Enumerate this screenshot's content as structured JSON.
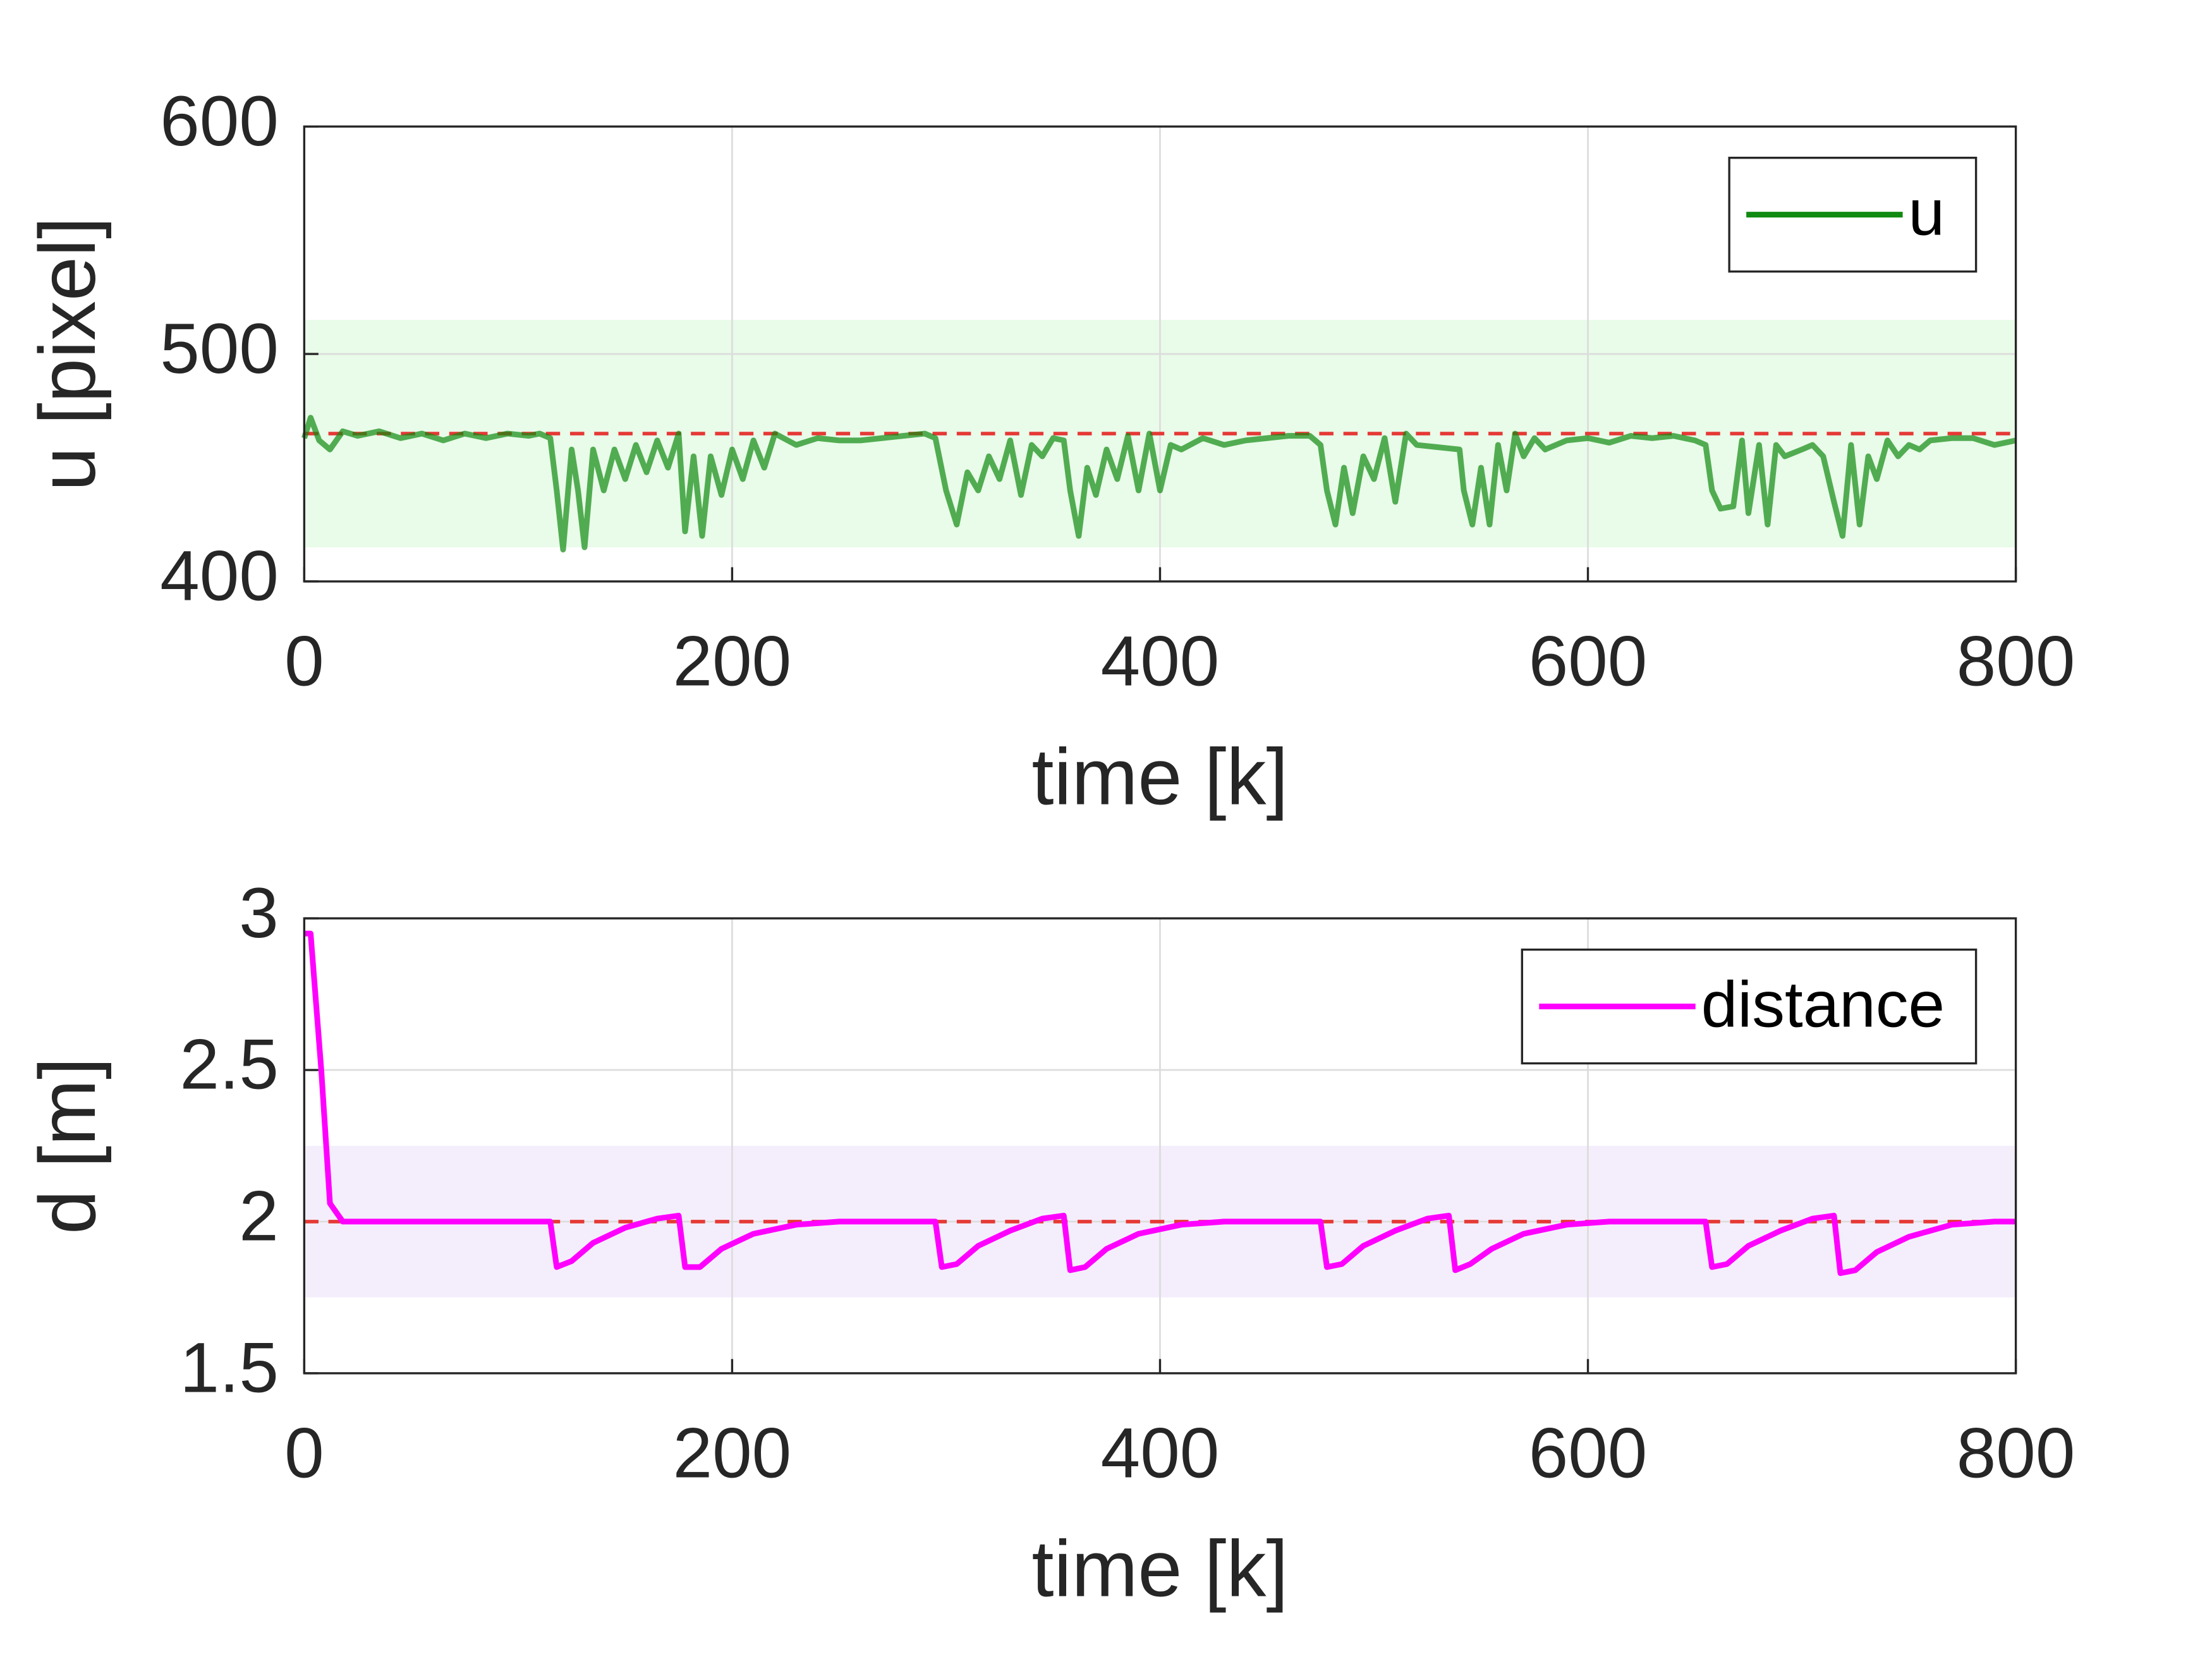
{
  "chart_data": [
    {
      "type": "line",
      "xlabel": "time [k]",
      "ylabel": "u [pixel]",
      "xlim": [
        0,
        800
      ],
      "xticks": [
        0,
        200,
        400,
        600,
        800
      ],
      "ylim": [
        400,
        600
      ],
      "yticks": [
        400,
        500,
        600
      ],
      "grid": true,
      "legend": "upper right",
      "band": [
        415,
        515
      ],
      "band_color": "#e9fbe9",
      "reference": 465,
      "reference_color": "#e53935",
      "series": [
        {
          "name": "u",
          "color": "#108a10",
          "x": [
            0,
            3,
            7,
            12,
            18,
            25,
            35,
            45,
            55,
            65,
            75,
            85,
            95,
            105,
            110,
            115,
            118,
            121,
            125,
            128,
            131,
            135,
            140,
            145,
            150,
            155,
            160,
            165,
            170,
            175,
            178,
            182,
            186,
            190,
            195,
            200,
            205,
            210,
            215,
            220,
            230,
            240,
            250,
            260,
            270,
            280,
            290,
            295,
            300,
            305,
            310,
            315,
            320,
            325,
            330,
            335,
            340,
            345,
            350,
            355,
            358,
            362,
            366,
            370,
            375,
            380,
            385,
            390,
            395,
            400,
            405,
            410,
            420,
            430,
            440,
            450,
            460,
            470,
            475,
            478,
            482,
            486,
            490,
            495,
            500,
            505,
            510,
            515,
            520,
            530,
            540,
            542,
            546,
            550,
            554,
            558,
            562,
            566,
            570,
            575,
            580,
            590,
            600,
            610,
            620,
            630,
            640,
            650,
            655,
            658,
            662,
            668,
            672,
            675,
            680,
            684,
            688,
            692,
            700,
            705,
            710,
            715,
            719,
            723,
            727,
            731,
            735,
            740,
            745,
            750,
            755,
            760,
            770,
            780,
            790,
            800
          ],
          "values": [
            463,
            472,
            462,
            458,
            466,
            464,
            466,
            463,
            465,
            462,
            465,
            463,
            465,
            464,
            465,
            463,
            440,
            414,
            458,
            440,
            415,
            458,
            440,
            458,
            445,
            460,
            448,
            462,
            450,
            465,
            422,
            455,
            420,
            455,
            438,
            458,
            445,
            462,
            450,
            465,
            460,
            463,
            462,
            462,
            463,
            464,
            465,
            463,
            440,
            425,
            448,
            440,
            455,
            445,
            462,
            438,
            460,
            455,
            463,
            462,
            440,
            420,
            450,
            438,
            458,
            445,
            464,
            440,
            465,
            440,
            460,
            458,
            463,
            460,
            462,
            463,
            464,
            464,
            460,
            440,
            425,
            450,
            430,
            455,
            445,
            463,
            435,
            465,
            460,
            459,
            458,
            440,
            425,
            450,
            425,
            460,
            440,
            465,
            455,
            463,
            458,
            462,
            463,
            461,
            464,
            463,
            464,
            462,
            460,
            440,
            432,
            433,
            462,
            430,
            460,
            425,
            460,
            455,
            458,
            460,
            455,
            435,
            420,
            460,
            425,
            455,
            445,
            462,
            455,
            460,
            458,
            462,
            463,
            463,
            460,
            462
          ]
        }
      ]
    },
    {
      "type": "line",
      "xlabel": "time [k]",
      "ylabel": "d [m]",
      "xlim": [
        0,
        800
      ],
      "xticks": [
        0,
        200,
        400,
        600,
        800
      ],
      "ylim": [
        1.5,
        3
      ],
      "yticks": [
        1.5,
        2,
        2.5,
        3
      ],
      "grid": true,
      "legend": "upper right",
      "band": [
        1.75,
        2.25
      ],
      "band_color": "#f4eefc",
      "reference": 2,
      "reference_color": "#e53935",
      "series": [
        {
          "name": "distance",
          "color": "#ff00ff",
          "x": [
            0,
            3,
            8,
            12,
            18,
            30,
            60,
            90,
            115,
            118,
            125,
            135,
            150,
            165,
            175,
            178,
            185,
            195,
            210,
            230,
            250,
            295,
            298,
            305,
            315,
            330,
            345,
            355,
            358,
            365,
            375,
            390,
            410,
            430,
            475,
            478,
            485,
            495,
            510,
            525,
            535,
            538,
            545,
            555,
            570,
            590,
            610,
            655,
            658,
            665,
            675,
            690,
            705,
            715,
            718,
            725,
            735,
            750,
            770,
            790,
            800
          ],
          "values": [
            2.95,
            2.95,
            2.5,
            2.06,
            2.0,
            2.0,
            2.0,
            2.0,
            2.0,
            1.85,
            1.87,
            1.93,
            1.98,
            2.01,
            2.02,
            1.85,
            1.85,
            1.91,
            1.96,
            1.99,
            2.0,
            2.0,
            1.85,
            1.86,
            1.92,
            1.97,
            2.01,
            2.02,
            1.84,
            1.85,
            1.91,
            1.96,
            1.99,
            2.0,
            2.0,
            1.85,
            1.86,
            1.92,
            1.97,
            2.01,
            2.02,
            1.84,
            1.86,
            1.91,
            1.96,
            1.99,
            2.0,
            2.0,
            1.85,
            1.86,
            1.92,
            1.97,
            2.01,
            2.02,
            1.83,
            1.84,
            1.9,
            1.95,
            1.99,
            2.0,
            2.0
          ]
        }
      ]
    }
  ]
}
